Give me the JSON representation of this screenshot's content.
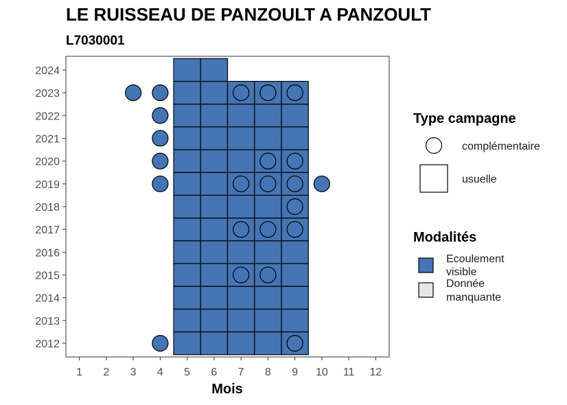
{
  "chart_data": {
    "type": "heatmap",
    "title": "LE RUISSEAU DE PANZOULT A PANZOULT",
    "subtitle": "L7030001",
    "xlabel": "Mois",
    "ylabel": "",
    "x_ticks": [
      "1",
      "2",
      "3",
      "4",
      "5",
      "6",
      "7",
      "8",
      "9",
      "10",
      "11",
      "12"
    ],
    "y_ticks": [
      "2012",
      "2013",
      "2014",
      "2015",
      "2016",
      "2017",
      "2018",
      "2019",
      "2020",
      "2021",
      "2022",
      "2023",
      "2024"
    ],
    "xlim": [
      0.5,
      12.5
    ],
    "ylim": [
      2011.4,
      2024.6
    ],
    "grid": false,
    "legend_position": "right",
    "colors": {
      "ecoulement_visible": "#4575b4",
      "donnee_manquante": "#e6e6e6",
      "outline": "#000000"
    },
    "legends": {
      "shape_title": "Type campagne",
      "shape_items": [
        {
          "label": "complémentaire",
          "shape": "circle"
        },
        {
          "label": "usuelle",
          "shape": "square"
        }
      ],
      "fill_title": "Modalités",
      "fill_items": [
        {
          "label": "Ecoulement visible",
          "lines": [
            "Ecoulement",
            "visible"
          ],
          "key": "ecoulement_visible"
        },
        {
          "label": "Donnée manquante",
          "lines": [
            "Donnée",
            "manquante"
          ],
          "key": "donnee_manquante"
        }
      ]
    },
    "usuelle": {
      "months": [
        5,
        6,
        7,
        8,
        9
      ],
      "years": [
        2012,
        2023
      ],
      "modalite": "ecoulement_visible",
      "extra": [
        {
          "month": 5,
          "year": 2024
        },
        {
          "month": 6,
          "year": 2024
        }
      ]
    },
    "complementaire": [
      {
        "month": 3,
        "year": 2023
      },
      {
        "month": 4,
        "year": 2023
      },
      {
        "month": 7,
        "year": 2023
      },
      {
        "month": 8,
        "year": 2023
      },
      {
        "month": 9,
        "year": 2023
      },
      {
        "month": 4,
        "year": 2022
      },
      {
        "month": 4,
        "year": 2021
      },
      {
        "month": 4,
        "year": 2020
      },
      {
        "month": 8,
        "year": 2020
      },
      {
        "month": 9,
        "year": 2020
      },
      {
        "month": 4,
        "year": 2019
      },
      {
        "month": 7,
        "year": 2019
      },
      {
        "month": 8,
        "year": 2019
      },
      {
        "month": 9,
        "year": 2019
      },
      {
        "month": 10,
        "year": 2019
      },
      {
        "month": 9,
        "year": 2018
      },
      {
        "month": 7,
        "year": 2017
      },
      {
        "month": 8,
        "year": 2017
      },
      {
        "month": 9,
        "year": 2017
      },
      {
        "month": 7,
        "year": 2015
      },
      {
        "month": 8,
        "year": 2015
      },
      {
        "month": 4,
        "year": 2012
      },
      {
        "month": 9,
        "year": 2012
      }
    ]
  }
}
